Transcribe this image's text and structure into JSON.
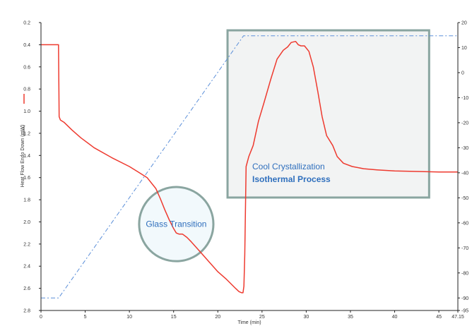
{
  "chart_data": {
    "type": "line",
    "title": "",
    "xlabel": "Time (min)",
    "ylabel": "Heat Flow Endo Down (mW)",
    "xlim": [
      0,
      47.15
    ],
    "ylim_left": [
      2.8,
      0.2
    ],
    "ylim_right": [
      -95,
      20
    ],
    "x_ticks": [
      "0",
      "5",
      "10",
      "15",
      "20",
      "25",
      "30",
      "35",
      "40",
      "45",
      "47.15"
    ],
    "x_tick_values": [
      0,
      5,
      10,
      15,
      20,
      25,
      30,
      35,
      40,
      45,
      47.15
    ],
    "left_ticks": [
      "0.2",
      "0.4",
      "0.6",
      "0.8",
      "1.0",
      "1.2",
      "1.4",
      "1.6",
      "1.8",
      "2.0",
      "2.2",
      "2.4",
      "2.6",
      "2.8"
    ],
    "left_tick_values": [
      0.2,
      0.4,
      0.6,
      0.8,
      1.0,
      1.2,
      1.4,
      1.6,
      1.8,
      2.0,
      2.2,
      2.4,
      2.6,
      2.8
    ],
    "right_ticks": [
      "20",
      "10",
      "0",
      "-10",
      "-20",
      "-30",
      "-40",
      "-50",
      "-60",
      "-70",
      "-80",
      "-90",
      "-95"
    ],
    "right_tick_values": [
      20,
      10,
      0,
      -10,
      -20,
      -30,
      -40,
      -50,
      -60,
      -70,
      -80,
      -90,
      -95
    ],
    "grid": false,
    "colors": {
      "heat_flow": "#ee3a2f",
      "temperature": "#5b8fd9",
      "annotation": "#8aa5a0",
      "annotation_text": "#2f6fbd"
    },
    "series": [
      {
        "axis": "left",
        "x": [
          0,
          1.98,
          2.05,
          2.2,
          2.6,
          3.5,
          4.5,
          6,
          8,
          10,
          11,
          12,
          13,
          13.5,
          14,
          14.5,
          15,
          15.3,
          15.6,
          16,
          16.5,
          17,
          18,
          19,
          20,
          21,
          22,
          22.4,
          22.7,
          22.85,
          22.95,
          23.05,
          23.2,
          23.5,
          24,
          24.6,
          25.2,
          26,
          26.7,
          27.4,
          27.9,
          28.3,
          28.8,
          29.1,
          29.4,
          29.8,
          30.3,
          30.8,
          31.3,
          31.8,
          32.3,
          33,
          33.5,
          34.2,
          35.2,
          36.5,
          38,
          40,
          43,
          45,
          47.15
        ],
        "y": [
          0.4,
          0.4,
          1.05,
          1.08,
          1.1,
          1.17,
          1.24,
          1.33,
          1.42,
          1.5,
          1.55,
          1.6,
          1.7,
          1.79,
          1.89,
          1.98,
          2.06,
          2.1,
          2.11,
          2.11,
          2.14,
          2.18,
          2.27,
          2.36,
          2.45,
          2.52,
          2.6,
          2.63,
          2.64,
          2.64,
          2.58,
          2.3,
          1.5,
          1.41,
          1.31,
          1.09,
          0.93,
          0.71,
          0.53,
          0.45,
          0.42,
          0.38,
          0.37,
          0.4,
          0.41,
          0.41,
          0.46,
          0.6,
          0.82,
          1.05,
          1.22,
          1.31,
          1.41,
          1.47,
          1.5,
          1.52,
          1.53,
          1.54,
          1.545,
          1.55,
          1.55
        ]
      },
      {
        "axis": "right",
        "x": [
          0,
          2,
          22.9,
          47.15
        ],
        "y": [
          -90,
          -90,
          14.7,
          14.7
        ]
      }
    ],
    "annotations": [
      {
        "label": "Glass Transition",
        "shape": "circle",
        "center": [
          15.3,
          2.02
        ],
        "radius_x": 4.2
      },
      {
        "label": "Cool Crystallization",
        "label2": "Isothermal Process",
        "shape": "rect",
        "x_range": [
          21.1,
          43.9
        ],
        "y_range": [
          0.27,
          1.78
        ]
      }
    ]
  }
}
